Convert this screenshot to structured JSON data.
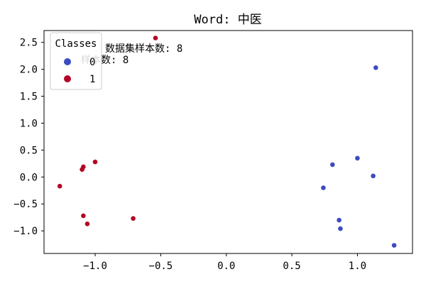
{
  "chart_data": {
    "type": "scatter",
    "title": "Word: 中医",
    "xlabel": "",
    "ylabel": "",
    "xlim": [
      -1.39,
      1.42
    ],
    "ylim": [
      -1.42,
      2.72
    ],
    "xticks": [
      -1.0,
      -0.5,
      0.0,
      0.5,
      1.0
    ],
    "xtick_labels": [
      "−1.0",
      "−0.5",
      "0.0",
      "0.5",
      "1.0"
    ],
    "yticks": [
      -1.0,
      -0.5,
      0.0,
      0.5,
      1.0,
      1.5,
      2.0,
      2.5
    ],
    "ytick_labels": [
      "−1.0",
      "−0.5",
      "0.0",
      "0.5",
      "1.0",
      "1.5",
      "2.0",
      "2.5"
    ],
    "grid": false,
    "legend": {
      "title": "Classes",
      "placement": "top-left",
      "entries": [
        {
          "label": "0",
          "color": "#3b4cc0"
        },
        {
          "label": "1",
          "color": "#b40426"
        }
      ]
    },
    "annotations": [
      "数据集样本数: 8",
      "样本数: 8"
    ],
    "series": [
      {
        "name": "0",
        "color": "#3b4cc0",
        "x": [
          1.14,
          1.0,
          0.81,
          1.12,
          0.74,
          0.86,
          0.87,
          1.28
        ],
        "y": [
          2.03,
          0.35,
          0.23,
          0.02,
          -0.2,
          -0.8,
          -0.96,
          -1.27
        ]
      },
      {
        "name": "1",
        "color": "#b40426",
        "x": [
          -0.54,
          -1.0,
          -1.09,
          -1.1,
          -1.27,
          -1.09,
          -0.71,
          -1.06
        ],
        "y": [
          2.58,
          0.28,
          0.19,
          0.14,
          -0.17,
          -0.72,
          -0.77,
          -0.87
        ]
      }
    ]
  }
}
